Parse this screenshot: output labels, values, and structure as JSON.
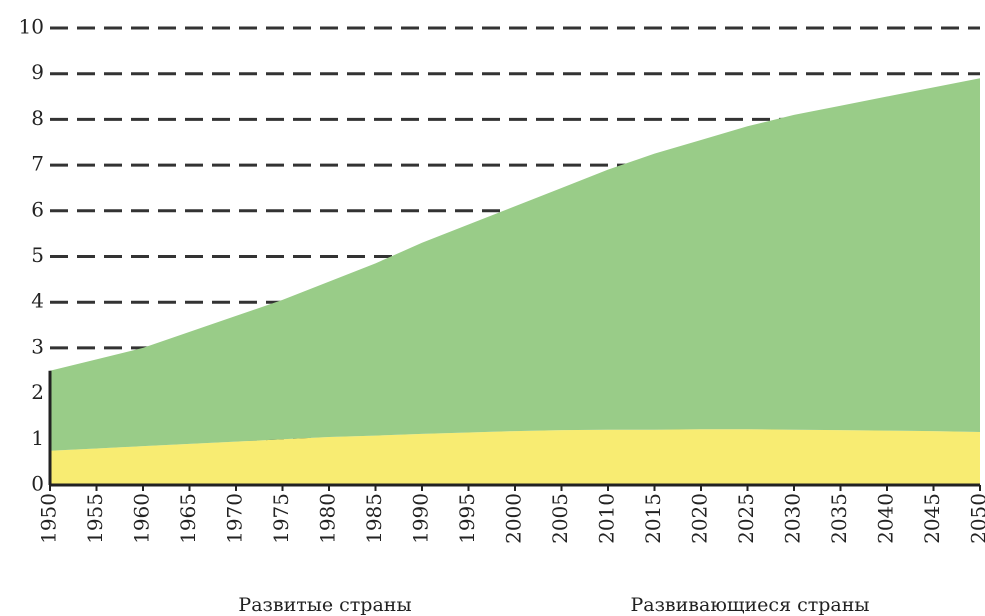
{
  "chart_data": {
    "type": "stacked_area",
    "x": [
      1950,
      1955,
      1960,
      1965,
      1970,
      1975,
      1980,
      1985,
      1990,
      1995,
      2000,
      2005,
      2010,
      2015,
      2020,
      2025,
      2030,
      2035,
      2040,
      2045,
      2050
    ],
    "series": [
      {
        "name": "Развитые страны",
        "color": "#f8ec72",
        "values": [
          0.75,
          0.8,
          0.85,
          0.9,
          0.95,
          1.0,
          1.05,
          1.08,
          1.12,
          1.15,
          1.18,
          1.2,
          1.21,
          1.21,
          1.22,
          1.22,
          1.21,
          1.2,
          1.19,
          1.18,
          1.16
        ]
      },
      {
        "name": "Развивающиеся страны",
        "color": "#99cc88",
        "values": [
          1.75,
          1.95,
          2.15,
          2.45,
          2.75,
          3.05,
          3.4,
          3.77,
          4.18,
          4.55,
          4.92,
          5.3,
          5.69,
          6.04,
          6.33,
          6.63,
          6.89,
          7.1,
          7.31,
          7.52,
          7.74
        ]
      }
    ],
    "xlim": [
      1950,
      2050
    ],
    "xticks": [
      1950,
      1955,
      1960,
      1965,
      1970,
      1975,
      1980,
      1985,
      1990,
      1995,
      2000,
      2005,
      2010,
      2015,
      2020,
      2025,
      2030,
      2035,
      2040,
      2045,
      2050
    ],
    "ylim": [
      0,
      10
    ],
    "yticks": [
      0,
      1,
      2,
      3,
      4,
      5,
      6,
      7,
      8,
      9,
      10
    ],
    "grid": true
  }
}
